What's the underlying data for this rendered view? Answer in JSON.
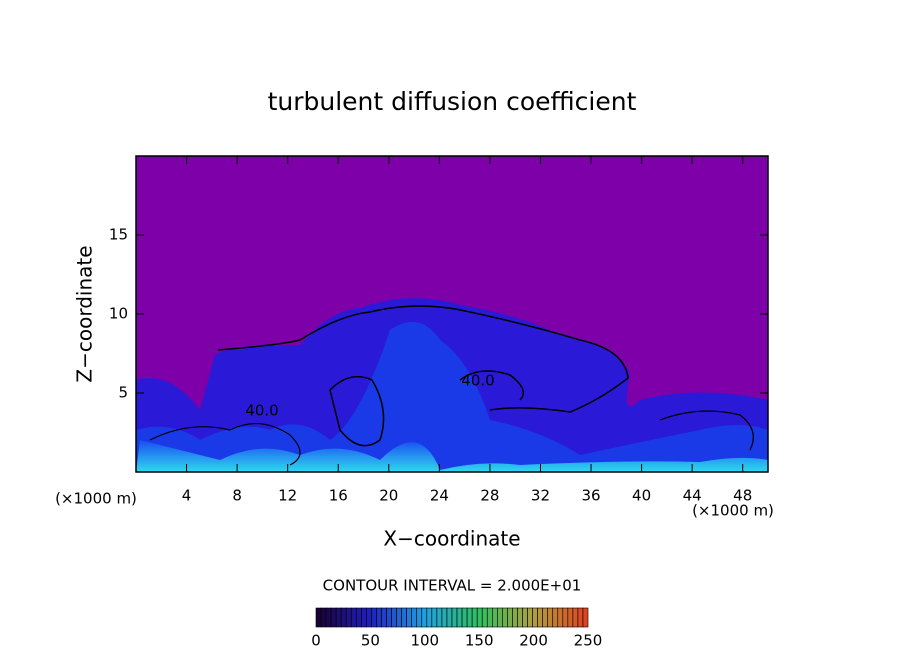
{
  "chart_data": {
    "type": "contour",
    "title": "turbulent diffusion coefficient",
    "xlabel": "X−coordinate",
    "ylabel": "Z−coordinate",
    "x_unit_label": "(×1000 m)",
    "xlim": [
      0,
      50
    ],
    "xticks": [
      4,
      8,
      12,
      16,
      20,
      24,
      28,
      32,
      36,
      40,
      44,
      48
    ],
    "ylim": [
      0,
      20
    ],
    "yticks": [
      5,
      10,
      15
    ],
    "contour_labels": [
      {
        "value": 40,
        "label": "40.0"
      },
      {
        "value": 40,
        "label": "40.0"
      }
    ],
    "contour_interval_text": "CONTOUR INTERVAL = 2.000E+01",
    "colorbar": {
      "lim": [
        0,
        250
      ],
      "ticks": [
        0,
        50,
        100,
        150,
        200,
        250
      ],
      "colors": [
        "#1a0030",
        "#2020c0",
        "#20a0e0",
        "#30c060",
        "#b0a040",
        "#e04020"
      ]
    }
  }
}
